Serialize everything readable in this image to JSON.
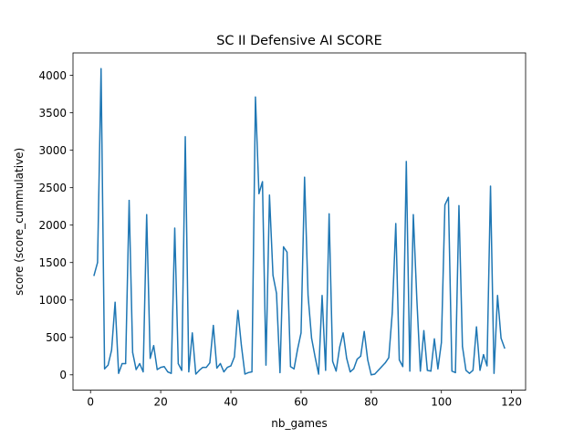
{
  "chart_data": {
    "type": "line",
    "title": "SC II Defensive AI SCORE",
    "xlabel": "nb_games",
    "ylabel": "score (score_cummulative)",
    "xlim": [
      -5,
      124
    ],
    "ylim": [
      -205,
      4300
    ],
    "xticks": [
      0,
      20,
      40,
      60,
      80,
      100,
      120
    ],
    "yticks": [
      0,
      500,
      1000,
      1500,
      2000,
      2500,
      3000,
      3500,
      4000
    ],
    "grid": false,
    "legend": "none",
    "line_color": "#1f77b4",
    "series": [
      {
        "x": [
          1,
          2,
          3,
          4,
          5,
          6,
          7,
          8,
          9,
          10,
          11,
          12,
          13,
          14,
          15,
          16,
          17,
          18,
          19,
          20,
          21,
          22,
          23,
          24,
          25,
          26,
          27,
          28,
          29,
          30,
          31,
          32,
          33,
          34,
          35,
          36,
          37,
          38,
          39,
          40,
          41,
          42,
          43,
          44,
          45,
          46,
          47,
          48,
          49,
          50,
          51,
          52,
          53,
          54,
          55,
          56,
          57,
          58,
          59,
          60,
          61,
          62,
          63,
          64,
          65,
          66,
          67,
          68,
          69,
          70,
          71,
          72,
          73,
          74,
          75,
          76,
          77,
          78,
          79,
          80,
          81,
          82,
          83,
          84,
          85,
          86,
          87,
          88,
          89,
          90,
          91,
          92,
          93,
          94,
          95,
          96,
          97,
          98,
          99,
          100,
          101,
          102,
          103,
          104,
          105,
          106,
          107,
          108,
          109,
          110,
          111,
          112,
          113,
          114,
          115,
          116,
          117,
          118
        ],
        "values": [
          1330,
          1500,
          4090,
          80,
          130,
          330,
          970,
          20,
          150,
          150,
          2330,
          300,
          70,
          150,
          40,
          2140,
          220,
          390,
          70,
          100,
          110,
          40,
          20,
          1960,
          150,
          60,
          3180,
          40,
          560,
          10,
          60,
          100,
          100,
          160,
          660,
          90,
          150,
          40,
          100,
          120,
          240,
          860,
          390,
          10,
          30,
          40,
          3710,
          2420,
          2580,
          130,
          2400,
          1330,
          1090,
          30,
          1710,
          1640,
          110,
          80,
          340,
          560,
          2640,
          1060,
          490,
          240,
          10,
          1060,
          60,
          2150,
          180,
          50,
          370,
          560,
          220,
          40,
          80,
          210,
          250,
          580,
          200,
          0,
          10,
          60,
          110,
          160,
          230,
          830,
          2020,
          200,
          110,
          2850,
          50,
          2140,
          1010,
          50,
          590,
          60,
          50,
          480,
          80,
          430,
          2270,
          2370,
          50,
          30,
          2260,
          380,
          60,
          20,
          60,
          640,
          60,
          270,
          120,
          2520,
          20,
          1060,
          490,
          360
        ]
      }
    ]
  }
}
